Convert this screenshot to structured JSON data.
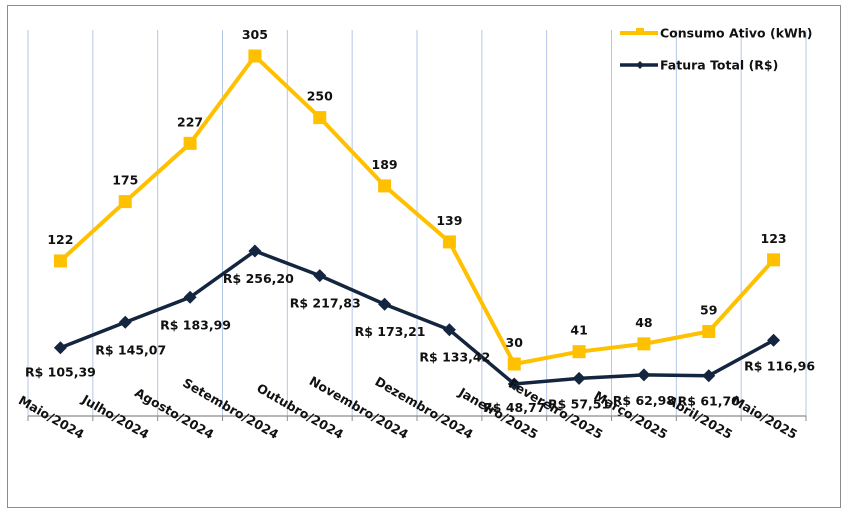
{
  "chart_data": {
    "type": "line",
    "title": "",
    "xlabel": "",
    "ylabel": "",
    "categories": [
      "Maio/2024",
      "Julho/2024",
      "Agosto/2024",
      "Setembro/2024",
      "Outubro/2024",
      "Novembro/2024",
      "Dezembro/2024",
      "Janeiro/2025",
      "Fevereiro/2025",
      "Março/2025",
      "Abril/2025",
      "Maio/2025"
    ],
    "series": [
      {
        "name": "Consumo Ativo (kWh)",
        "color": "#FFC000",
        "marker": "square",
        "axis": "primary",
        "values": [
          122,
          175,
          227,
          305,
          250,
          189,
          139,
          30,
          41,
          48,
          59,
          123
        ],
        "labels": [
          "122",
          "175",
          "227",
          "305",
          "250",
          "189",
          "139",
          "30",
          "41",
          "48",
          "59",
          "123"
        ]
      },
      {
        "name": "Fatura Total (R$)",
        "color": "#14253F",
        "marker": "diamond",
        "axis": "secondary",
        "values": [
          105.39,
          145.07,
          183.99,
          256.2,
          217.83,
          173.21,
          133.42,
          48.77,
          57.51,
          62.98,
          61.7,
          116.96
        ],
        "labels": [
          "R$ 105,39",
          "R$ 145,07",
          "R$ 183,99",
          "R$ 256,20",
          "R$ 217,83",
          "R$ 173,21",
          "R$ 133,42",
          "R$ 48,77",
          "R$ 57,51",
          "R$ 62,98",
          "R$ 61,70",
          "R$ 116,96"
        ]
      }
    ],
    "grid": "vertical",
    "gridline_color": "#B4C7E7",
    "legend_position": "top-right",
    "y_axis_visible": false
  }
}
